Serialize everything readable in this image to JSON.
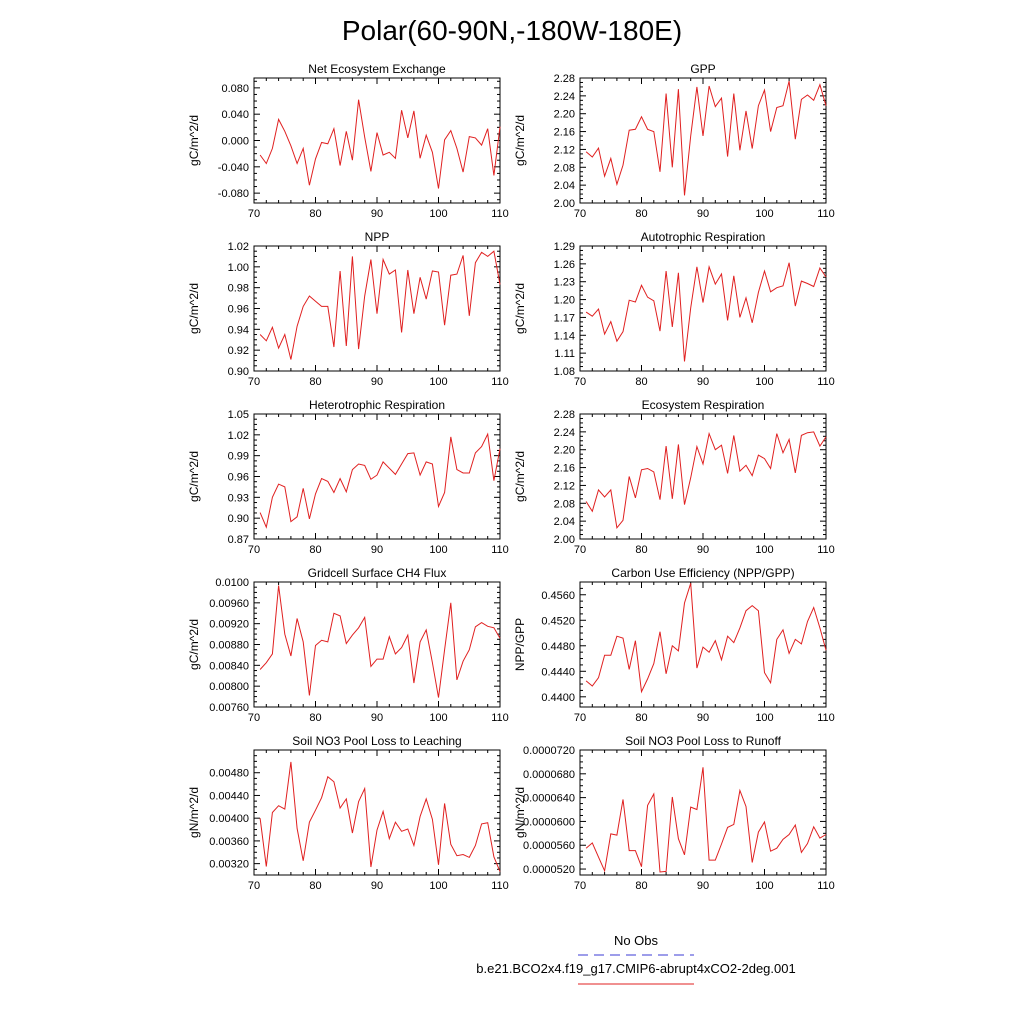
{
  "figure": {
    "title": "Polar(60-90N,-180W-180E)",
    "legend": [
      {
        "label": "No Obs",
        "color": "#3b3bd6",
        "style": "dashed"
      },
      {
        "label": "b.e21.BCO2x4.f19_g17.CMIP6-abrupt4xCO2-2deg.001",
        "color": "#e02020",
        "style": "solid"
      }
    ]
  },
  "chart_data": [
    {
      "type": "line",
      "title": "Net Ecosystem Exchange",
      "xlabel": "",
      "ylabel": "gC/m^2/d",
      "xlim": [
        70,
        110
      ],
      "ylim": [
        -0.095,
        0.095
      ],
      "xticks": [
        70,
        80,
        90,
        100,
        110
      ],
      "xtick_labels": [
        "70",
        "80",
        "90",
        "100",
        "110"
      ],
      "yticks": [
        -0.08,
        -0.04,
        0.0,
        0.04,
        0.08
      ],
      "ytick_labels": [
        "-0.080",
        "-0.040",
        "0.000",
        "0.040",
        "0.080"
      ],
      "color": "#e02020",
      "x": [
        71,
        72,
        73,
        74,
        75,
        76,
        77,
        78,
        79,
        80,
        81,
        82,
        83,
        84,
        85,
        86,
        87,
        88,
        89,
        90,
        91,
        92,
        93,
        94,
        95,
        96,
        97,
        98,
        99,
        100,
        101,
        102,
        103,
        104,
        105,
        106,
        107,
        108,
        109,
        110
      ],
      "values": [
        -0.022,
        -0.035,
        -0.012,
        0.032,
        0.014,
        -0.008,
        -0.035,
        -0.012,
        -0.068,
        -0.028,
        -0.003,
        -0.005,
        0.018,
        -0.038,
        0.014,
        -0.03,
        0.062,
        0.005,
        -0.047,
        0.012,
        -0.022,
        -0.018,
        -0.027,
        0.046,
        0.004,
        0.045,
        -0.027,
        0.008,
        -0.018,
        -0.073,
        0.001,
        0.015,
        -0.012,
        -0.048,
        0.006,
        0.004,
        -0.007,
        0.018,
        -0.053,
        0.021
      ]
    },
    {
      "type": "line",
      "title": "GPP",
      "xlabel": "",
      "ylabel": "gC/m^2/d",
      "xlim": [
        70,
        110
      ],
      "ylim": [
        2.0,
        2.28
      ],
      "xticks": [
        70,
        80,
        90,
        100,
        110
      ],
      "xtick_labels": [
        "70",
        "80",
        "90",
        "100",
        "110"
      ],
      "yticks": [
        2.0,
        2.04,
        2.08,
        2.12,
        2.16,
        2.2,
        2.24,
        2.28
      ],
      "ytick_labels": [
        "2.00",
        "2.04",
        "2.08",
        "2.12",
        "2.16",
        "2.20",
        "2.24",
        "2.28"
      ],
      "color": "#e02020",
      "x": [
        71,
        72,
        73,
        74,
        75,
        76,
        77,
        78,
        79,
        80,
        81,
        82,
        83,
        84,
        85,
        86,
        87,
        88,
        89,
        90,
        91,
        92,
        93,
        94,
        95,
        96,
        97,
        98,
        99,
        100,
        101,
        102,
        103,
        104,
        105,
        106,
        107,
        108,
        109,
        110
      ],
      "values": [
        2.115,
        2.103,
        2.123,
        2.06,
        2.1,
        2.042,
        2.085,
        2.163,
        2.165,
        2.193,
        2.165,
        2.16,
        2.07,
        2.245,
        2.08,
        2.255,
        2.017,
        2.15,
        2.26,
        2.15,
        2.262,
        2.216,
        2.235,
        2.104,
        2.245,
        2.118,
        2.206,
        2.122,
        2.218,
        2.253,
        2.16,
        2.214,
        2.218,
        2.273,
        2.143,
        2.232,
        2.242,
        2.23,
        2.265,
        2.218
      ]
    },
    {
      "type": "line",
      "title": "NPP",
      "xlabel": "",
      "ylabel": "gC/m^2/d",
      "xlim": [
        70,
        110
      ],
      "ylim": [
        0.9,
        1.02
      ],
      "xticks": [
        70,
        80,
        90,
        100,
        110
      ],
      "xtick_labels": [
        "70",
        "80",
        "90",
        "100",
        "110"
      ],
      "yticks": [
        0.9,
        0.92,
        0.94,
        0.96,
        0.98,
        1.0,
        1.02
      ],
      "ytick_labels": [
        "0.90",
        "0.92",
        "0.94",
        "0.96",
        "0.98",
        "1.00",
        "1.02"
      ],
      "color": "#e02020",
      "x": [
        71,
        72,
        73,
        74,
        75,
        76,
        77,
        78,
        79,
        80,
        81,
        82,
        83,
        84,
        85,
        86,
        87,
        88,
        89,
        90,
        91,
        92,
        93,
        94,
        95,
        96,
        97,
        98,
        99,
        100,
        101,
        102,
        103,
        104,
        105,
        106,
        107,
        108,
        109,
        110
      ],
      "values": [
        0.935,
        0.929,
        0.942,
        0.922,
        0.935,
        0.911,
        0.943,
        0.962,
        0.972,
        0.967,
        0.962,
        0.962,
        0.923,
        0.996,
        0.924,
        1.01,
        0.921,
        0.972,
        1.007,
        0.955,
        1.007,
        0.993,
        0.997,
        0.937,
        0.997,
        0.955,
        0.99,
        0.969,
        0.996,
        0.995,
        0.944,
        0.992,
        0.993,
        1.011,
        0.953,
        1.004,
        1.014,
        1.01,
        1.015,
        0.983
      ]
    },
    {
      "type": "line",
      "title": "Autotrophic Respiration",
      "xlabel": "",
      "ylabel": "gC/m^2/d",
      "xlim": [
        70,
        110
      ],
      "ylim": [
        1.08,
        1.29
      ],
      "xticks": [
        70,
        80,
        90,
        100,
        110
      ],
      "xtick_labels": [
        "70",
        "80",
        "90",
        "100",
        "110"
      ],
      "yticks": [
        1.08,
        1.11,
        1.14,
        1.17,
        1.2,
        1.23,
        1.26,
        1.29
      ],
      "ytick_labels": [
        "1.08",
        "1.11",
        "1.14",
        "1.17",
        "1.20",
        "1.23",
        "1.26",
        "1.29"
      ],
      "color": "#e02020",
      "x": [
        71,
        72,
        73,
        74,
        75,
        76,
        77,
        78,
        79,
        80,
        81,
        82,
        83,
        84,
        85,
        86,
        87,
        88,
        89,
        90,
        91,
        92,
        93,
        94,
        95,
        96,
        97,
        98,
        99,
        100,
        101,
        102,
        103,
        104,
        105,
        106,
        107,
        108,
        109,
        110
      ],
      "values": [
        1.179,
        1.172,
        1.184,
        1.142,
        1.163,
        1.13,
        1.146,
        1.199,
        1.196,
        1.224,
        1.204,
        1.198,
        1.147,
        1.248,
        1.154,
        1.245,
        1.096,
        1.186,
        1.255,
        1.195,
        1.255,
        1.226,
        1.243,
        1.165,
        1.24,
        1.17,
        1.203,
        1.161,
        1.212,
        1.248,
        1.213,
        1.22,
        1.223,
        1.262,
        1.189,
        1.231,
        1.227,
        1.222,
        1.253,
        1.238
      ]
    },
    {
      "type": "line",
      "title": "Heterotrophic Respiration",
      "xlabel": "",
      "ylabel": "gC/m^2/d",
      "xlim": [
        70,
        110
      ],
      "ylim": [
        0.87,
        1.05
      ],
      "xticks": [
        70,
        80,
        90,
        100,
        110
      ],
      "xtick_labels": [
        "70",
        "80",
        "90",
        "100",
        "110"
      ],
      "yticks": [
        0.87,
        0.9,
        0.93,
        0.96,
        0.99,
        1.02,
        1.05
      ],
      "ytick_labels": [
        "0.87",
        "0.90",
        "0.93",
        "0.96",
        "0.99",
        "1.02",
        "1.05"
      ],
      "color": "#e02020",
      "x": [
        71,
        72,
        73,
        74,
        75,
        76,
        77,
        78,
        79,
        80,
        81,
        82,
        83,
        84,
        85,
        86,
        87,
        88,
        89,
        90,
        91,
        92,
        93,
        94,
        95,
        96,
        97,
        98,
        99,
        100,
        101,
        102,
        103,
        104,
        105,
        106,
        107,
        108,
        109,
        110
      ],
      "values": [
        0.908,
        0.887,
        0.93,
        0.949,
        0.945,
        0.895,
        0.902,
        0.943,
        0.899,
        0.935,
        0.957,
        0.953,
        0.937,
        0.957,
        0.938,
        0.97,
        0.978,
        0.976,
        0.956,
        0.962,
        0.981,
        0.972,
        0.963,
        0.978,
        0.993,
        0.994,
        0.962,
        0.981,
        0.978,
        0.917,
        0.937,
        1.017,
        0.97,
        0.965,
        0.965,
        0.994,
        1.003,
        1.021,
        0.954,
        1.0
      ]
    },
    {
      "type": "line",
      "title": "Ecosystem Respiration",
      "xlabel": "",
      "ylabel": "gC/m^2/d",
      "xlim": [
        70,
        110
      ],
      "ylim": [
        2.0,
        2.28
      ],
      "xticks": [
        70,
        80,
        90,
        100,
        110
      ],
      "xtick_labels": [
        "70",
        "80",
        "90",
        "100",
        "110"
      ],
      "yticks": [
        2.0,
        2.04,
        2.08,
        2.12,
        2.16,
        2.2,
        2.24,
        2.28
      ],
      "ytick_labels": [
        "2.00",
        "2.04",
        "2.08",
        "2.12",
        "2.16",
        "2.20",
        "2.24",
        "2.28"
      ],
      "color": "#e02020",
      "x": [
        71,
        72,
        73,
        74,
        75,
        76,
        77,
        78,
        79,
        80,
        81,
        82,
        83,
        84,
        85,
        86,
        87,
        88,
        89,
        90,
        91,
        92,
        93,
        94,
        95,
        96,
        97,
        98,
        99,
        100,
        101,
        102,
        103,
        104,
        105,
        106,
        107,
        108,
        109,
        110
      ],
      "values": [
        2.084,
        2.062,
        2.11,
        2.094,
        2.11,
        2.025,
        2.042,
        2.14,
        2.092,
        2.155,
        2.158,
        2.15,
        2.088,
        2.208,
        2.09,
        2.212,
        2.077,
        2.137,
        2.207,
        2.168,
        2.236,
        2.2,
        2.21,
        2.147,
        2.232,
        2.152,
        2.165,
        2.142,
        2.188,
        2.18,
        2.158,
        2.236,
        2.193,
        2.223,
        2.148,
        2.232,
        2.238,
        2.24,
        2.208,
        2.229
      ]
    },
    {
      "type": "line",
      "title": "Gridcell Surface CH4 Flux",
      "xlabel": "",
      "ylabel": "gC/m^2/d",
      "xlim": [
        70,
        110
      ],
      "ylim": [
        0.0076,
        0.01
      ],
      "xticks": [
        70,
        80,
        90,
        100,
        110
      ],
      "xtick_labels": [
        "70",
        "80",
        "90",
        "100",
        "110"
      ],
      "yticks": [
        0.0076,
        0.008,
        0.0084,
        0.0088,
        0.0092,
        0.0096,
        0.01
      ],
      "ytick_labels": [
        "0.00760",
        "0.00800",
        "0.00840",
        "0.00880",
        "0.00920",
        "0.00960",
        "0.0100"
      ],
      "color": "#e02020",
      "x": [
        71,
        72,
        73,
        74,
        75,
        76,
        77,
        78,
        79,
        80,
        81,
        82,
        83,
        84,
        85,
        86,
        87,
        88,
        89,
        90,
        91,
        92,
        93,
        94,
        95,
        96,
        97,
        98,
        99,
        100,
        101,
        102,
        103,
        104,
        105,
        106,
        107,
        108,
        109,
        110
      ],
      "values": [
        0.00832,
        0.00845,
        0.00862,
        0.00993,
        0.009,
        0.00858,
        0.0093,
        0.00885,
        0.00782,
        0.00878,
        0.00888,
        0.00885,
        0.0094,
        0.00935,
        0.00882,
        0.00898,
        0.00912,
        0.00932,
        0.00838,
        0.00852,
        0.00852,
        0.00895,
        0.00862,
        0.00874,
        0.00898,
        0.00806,
        0.00885,
        0.00908,
        0.00845,
        0.00778,
        0.0087,
        0.0096,
        0.00812,
        0.00848,
        0.0087,
        0.00914,
        0.00922,
        0.00915,
        0.00912,
        0.00892
      ]
    },
    {
      "type": "line",
      "title": "Carbon Use Efficiency (NPP/GPP)",
      "xlabel": "",
      "ylabel": "NPP/GPP",
      "xlim": [
        70,
        110
      ],
      "ylim": [
        0.4384,
        0.458
      ],
      "xticks": [
        70,
        80,
        90,
        100,
        110
      ],
      "xtick_labels": [
        "70",
        "80",
        "90",
        "100",
        "110"
      ],
      "yticks": [
        0.44,
        0.444,
        0.448,
        0.452,
        0.456
      ],
      "ytick_labels": [
        "0.4400",
        "0.4440",
        "0.4480",
        "0.4520",
        "0.4560"
      ],
      "color": "#e02020",
      "x": [
        71,
        72,
        73,
        74,
        75,
        76,
        77,
        78,
        79,
        80,
        81,
        82,
        83,
        84,
        85,
        86,
        87,
        88,
        89,
        90,
        91,
        92,
        93,
        94,
        95,
        96,
        97,
        98,
        99,
        100,
        101,
        102,
        103,
        104,
        105,
        106,
        107,
        108,
        109,
        110
      ],
      "values": [
        0.4425,
        0.4417,
        0.443,
        0.4465,
        0.4465,
        0.4495,
        0.4492,
        0.4443,
        0.4488,
        0.4408,
        0.4428,
        0.4452,
        0.4502,
        0.4436,
        0.448,
        0.4472,
        0.4547,
        0.4578,
        0.4445,
        0.4478,
        0.447,
        0.4488,
        0.4458,
        0.4495,
        0.4485,
        0.4508,
        0.4535,
        0.4543,
        0.4535,
        0.4438,
        0.4422,
        0.449,
        0.4505,
        0.4468,
        0.449,
        0.4483,
        0.4518,
        0.454,
        0.4508,
        0.4473
      ]
    },
    {
      "type": "line",
      "title": "Soil NO3 Pool Loss to Leaching",
      "xlabel": "",
      "ylabel": "gN/m^2/d",
      "xlim": [
        70,
        110
      ],
      "ylim": [
        0.003,
        0.0052
      ],
      "xticks": [
        70,
        80,
        90,
        100,
        110
      ],
      "xtick_labels": [
        "70",
        "80",
        "90",
        "100",
        "110"
      ],
      "yticks": [
        0.0032,
        0.0036,
        0.004,
        0.0044,
        0.0048
      ],
      "ytick_labels": [
        "0.00320",
        "0.00360",
        "0.00400",
        "0.00440",
        "0.00480"
      ],
      "color": "#e02020",
      "x": [
        71,
        72,
        73,
        74,
        75,
        76,
        77,
        78,
        79,
        80,
        81,
        82,
        83,
        84,
        85,
        86,
        87,
        88,
        89,
        90,
        91,
        92,
        93,
        94,
        95,
        96,
        97,
        98,
        99,
        100,
        101,
        102,
        103,
        104,
        105,
        106,
        107,
        108,
        109,
        110
      ],
      "values": [
        0.004,
        0.00315,
        0.0041,
        0.00422,
        0.00416,
        0.00499,
        0.00382,
        0.00325,
        0.00393,
        0.00414,
        0.00436,
        0.00473,
        0.00464,
        0.00418,
        0.00434,
        0.00374,
        0.00429,
        0.00452,
        0.00314,
        0.00379,
        0.00412,
        0.00364,
        0.00393,
        0.00377,
        0.00381,
        0.00352,
        0.00403,
        0.00434,
        0.00398,
        0.00318,
        0.00426,
        0.00354,
        0.00334,
        0.00336,
        0.00331,
        0.00352,
        0.0039,
        0.00392,
        0.00332,
        0.00306
      ]
    },
    {
      "type": "line",
      "title": "Soil NO3 Pool Loss to Runoff",
      "xlabel": "",
      "ylabel": "gN/m^2/d",
      "xlim": [
        70,
        110
      ],
      "ylim": [
        5.1e-05,
        7.2e-05
      ],
      "xticks": [
        70,
        80,
        90,
        100,
        110
      ],
      "xtick_labels": [
        "70",
        "80",
        "90",
        "100",
        "110"
      ],
      "yticks": [
        5.2e-05,
        5.6e-05,
        6e-05,
        6.4e-05,
        6.8e-05,
        7.2e-05
      ],
      "ytick_labels": [
        "0.0000520",
        "0.0000560",
        "0.0000600",
        "0.0000640",
        "0.0000680",
        "0.0000720"
      ],
      "color": "#e02020",
      "x": [
        71,
        72,
        73,
        74,
        75,
        76,
        77,
        78,
        79,
        80,
        81,
        82,
        83,
        84,
        85,
        86,
        87,
        88,
        89,
        90,
        91,
        92,
        93,
        94,
        95,
        96,
        97,
        98,
        99,
        100,
        101,
        102,
        103,
        104,
        105,
        106,
        107,
        108,
        109,
        110
      ],
      "values": [
        5.55e-05,
        5.64e-05,
        5.4e-05,
        5.17e-05,
        5.79e-05,
        5.77e-05,
        6.37e-05,
        5.51e-05,
        5.51e-05,
        5.24e-05,
        6.27e-05,
        6.46e-05,
        5.15e-05,
        5.16e-05,
        6.41e-05,
        5.71e-05,
        5.44e-05,
        6.24e-05,
        6.2e-05,
        6.91e-05,
        5.35e-05,
        5.35e-05,
        5.62e-05,
        5.9e-05,
        5.95e-05,
        6.52e-05,
        6.25e-05,
        5.31e-05,
        5.82e-05,
        5.99e-05,
        5.5e-05,
        5.55e-05,
        5.7e-05,
        5.78e-05,
        5.94e-05,
        5.48e-05,
        5.63e-05,
        5.91e-05,
        5.72e-05,
        5.78e-05
      ]
    }
  ]
}
